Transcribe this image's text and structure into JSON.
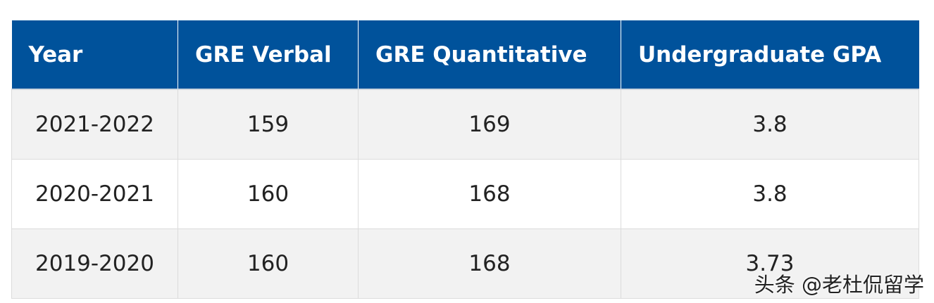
{
  "colors": {
    "header_bg": "#00529b",
    "header_text": "#ffffff",
    "row_shaded": "#f2f2f2",
    "row_plain": "#ffffff"
  },
  "table": {
    "headers": [
      "Year",
      "GRE Verbal",
      "GRE Quantitative",
      "Undergraduate GPA"
    ],
    "rows": [
      [
        "2021-2022",
        "159",
        "169",
        "3.8"
      ],
      [
        "2020-2021",
        "160",
        "168",
        "3.8"
      ],
      [
        "2019-2020",
        "160",
        "168",
        "3.73"
      ]
    ]
  },
  "watermark": {
    "text": "头条 @老杜侃留学"
  }
}
